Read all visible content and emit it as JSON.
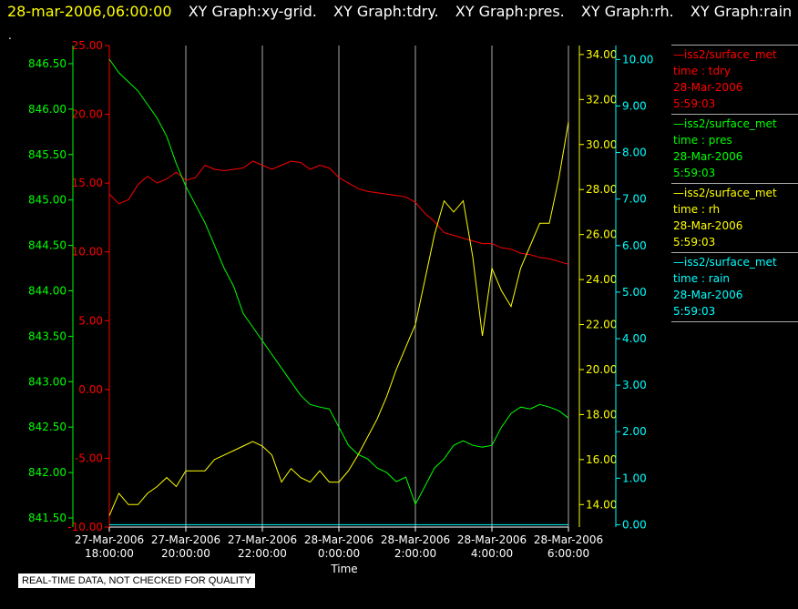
{
  "header": {
    "datetime": "28-mar-2006,06:00:00",
    "graphs": [
      "XY Graph:xy-grid.",
      "XY Graph:tdry.",
      "XY Graph:pres.",
      "XY Graph:rh.",
      "XY Graph:rain"
    ],
    "dot": "."
  },
  "footer": {
    "quality_note": "REAL-TIME DATA, NOT CHECKED FOR QUALITY"
  },
  "colors": {
    "tdry": "#ff0000",
    "pres": "#00ff00",
    "rh": "#ffff00",
    "rain": "#00ffff",
    "grid": "#aaaaaa",
    "background": "#000000"
  },
  "legend": [
    {
      "name": "—iss2/surface_met",
      "var": "time : tdry",
      "date": "28-Mar-2006",
      "time": "5:59:03",
      "color": "#ff0000"
    },
    {
      "name": "—iss2/surface_met",
      "var": "time : pres",
      "date": "28-Mar-2006",
      "time": "5:59:03",
      "color": "#00ff00"
    },
    {
      "name": "—iss2/surface_met",
      "var": "time : rh",
      "date": "28-Mar-2006",
      "time": "5:59:03",
      "color": "#ffff00"
    },
    {
      "name": "—iss2/surface_met",
      "var": "time : rain",
      "date": "28-Mar-2006",
      "time": "5:59:03",
      "color": "#00ffff"
    }
  ],
  "chart_data": {
    "type": "line",
    "xlabel": "Time",
    "x_ticks": [
      {
        "date": "27-Mar-2006",
        "time": "18:00:00",
        "h": 0
      },
      {
        "date": "27-Mar-2006",
        "time": "20:00:00",
        "h": 2
      },
      {
        "date": "27-Mar-2006",
        "time": "22:00:00",
        "h": 4
      },
      {
        "date": "28-Mar-2006",
        "time": "0:00:00",
        "h": 6
      },
      {
        "date": "28-Mar-2006",
        "time": "2:00:00",
        "h": 8
      },
      {
        "date": "28-Mar-2006",
        "time": "4:00:00",
        "h": 10
      },
      {
        "date": "28-Mar-2006",
        "time": "6:00:00",
        "h": 12
      }
    ],
    "xlim_hours": [
      0,
      12
    ],
    "grid": "vertical",
    "legend_position": "right",
    "axes": {
      "tdry": {
        "color": "#ff0000",
        "ylim": [
          -10,
          25
        ],
        "ticks": [
          "-10.00",
          "-5.00",
          "0.00",
          "5.00",
          "10.00",
          "15.00",
          "20.00",
          "25.00"
        ],
        "side": "left-inner"
      },
      "pres": {
        "color": "#00ff00",
        "ylim": [
          841.4,
          846.7
        ],
        "ticks": [
          "841.50",
          "842.00",
          "842.50",
          "843.00",
          "843.50",
          "844.00",
          "844.50",
          "845.00",
          "845.50",
          "846.00",
          "846.50"
        ],
        "side": "left-outer"
      },
      "rh": {
        "color": "#ffff00",
        "ylim": [
          13,
          34.4
        ],
        "ticks": [
          "14.00",
          "16.00",
          "18.00",
          "20.00",
          "22.00",
          "24.00",
          "26.00",
          "28.00",
          "30.00",
          "32.00",
          "34.00"
        ],
        "side": "right-inner"
      },
      "rain": {
        "color": "#00ffff",
        "ylim": [
          -0.05,
          10.3
        ],
        "ticks": [
          "0.00",
          "1.00",
          "2.00",
          "3.00",
          "4.00",
          "5.00",
          "6.00",
          "7.00",
          "8.00",
          "9.00",
          "10.00"
        ],
        "side": "right-outer"
      }
    },
    "series": [
      {
        "name": "tdry",
        "axis": "tdry",
        "x": [
          0,
          0.25,
          0.5,
          0.75,
          1,
          1.25,
          1.5,
          1.75,
          2,
          2.25,
          2.5,
          2.75,
          3,
          3.25,
          3.5,
          3.75,
          4,
          4.25,
          4.5,
          4.75,
          5,
          5.25,
          5.5,
          5.75,
          6,
          6.25,
          6.5,
          6.75,
          7,
          7.25,
          7.5,
          7.75,
          8,
          8.25,
          8.5,
          8.75,
          9,
          9.25,
          9.5,
          9.75,
          10,
          10.25,
          10.5,
          10.75,
          11,
          11.25,
          11.5,
          11.75,
          12
        ],
        "y": [
          14.2,
          13.5,
          13.8,
          14.9,
          15.5,
          15.0,
          15.3,
          15.8,
          15.2,
          15.4,
          16.3,
          16.0,
          15.9,
          16.0,
          16.1,
          16.6,
          16.3,
          16.0,
          16.3,
          16.6,
          16.5,
          16.0,
          16.3,
          16.1,
          15.4,
          15.0,
          14.6,
          14.4,
          14.3,
          14.2,
          14.1,
          14.0,
          13.6,
          12.8,
          12.2,
          11.4,
          11.2,
          11.0,
          10.8,
          10.6,
          10.6,
          10.3,
          10.2,
          9.9,
          9.8,
          9.6,
          9.5,
          9.3,
          9.1
        ]
      },
      {
        "name": "pres",
        "axis": "pres",
        "x": [
          0,
          0.25,
          0.5,
          0.75,
          1,
          1.25,
          1.5,
          1.75,
          2,
          2.25,
          2.5,
          2.75,
          3,
          3.25,
          3.5,
          3.75,
          4,
          4.25,
          4.5,
          4.75,
          5,
          5.25,
          5.5,
          5.75,
          6,
          6.25,
          6.5,
          6.75,
          7,
          7.25,
          7.5,
          7.75,
          8,
          8.25,
          8.5,
          8.75,
          9,
          9.25,
          9.5,
          9.75,
          10,
          10.25,
          10.5,
          10.75,
          11,
          11.25,
          11.5,
          11.75,
          12
        ],
        "y": [
          846.55,
          846.4,
          846.3,
          846.2,
          846.05,
          845.9,
          845.7,
          845.4,
          845.15,
          844.95,
          844.75,
          844.5,
          844.25,
          844.05,
          843.75,
          843.6,
          843.45,
          843.3,
          843.15,
          843.0,
          842.85,
          842.75,
          842.72,
          842.7,
          842.5,
          842.3,
          842.2,
          842.15,
          842.05,
          842.0,
          841.9,
          841.95,
          841.65,
          841.85,
          842.05,
          842.15,
          842.3,
          842.35,
          842.3,
          842.28,
          842.3,
          842.5,
          842.65,
          842.72,
          842.7,
          842.75,
          842.72,
          842.68,
          842.6
        ]
      },
      {
        "name": "rh",
        "axis": "rh",
        "x": [
          0,
          0.25,
          0.5,
          0.75,
          1,
          1.25,
          1.5,
          1.75,
          2,
          2.25,
          2.5,
          2.75,
          3,
          3.25,
          3.5,
          3.75,
          4,
          4.25,
          4.5,
          4.75,
          5,
          5.25,
          5.5,
          5.75,
          6,
          6.25,
          6.5,
          6.75,
          7,
          7.25,
          7.5,
          7.75,
          8,
          8.25,
          8.5,
          8.75,
          9,
          9.25,
          9.5,
          9.75,
          10,
          10.25,
          10.5,
          10.75,
          11,
          11.25,
          11.5,
          11.75,
          12
        ],
        "y": [
          13.5,
          14.5,
          14.0,
          14.0,
          14.5,
          14.8,
          15.2,
          14.8,
          15.5,
          15.5,
          15.5,
          16.0,
          16.2,
          16.4,
          16.6,
          16.8,
          16.6,
          16.2,
          15.0,
          15.6,
          15.2,
          15.0,
          15.5,
          15.0,
          15.0,
          15.5,
          16.2,
          17.0,
          17.8,
          18.8,
          20.0,
          21.0,
          22.0,
          24.0,
          26.0,
          27.5,
          27.0,
          27.5,
          25.0,
          21.5,
          24.5,
          23.5,
          22.8,
          24.5,
          25.5,
          26.5,
          26.5,
          28.5,
          31.0
        ]
      },
      {
        "name": "rain",
        "axis": "rain",
        "x": [
          0,
          12
        ],
        "y": [
          0,
          0
        ]
      }
    ]
  }
}
